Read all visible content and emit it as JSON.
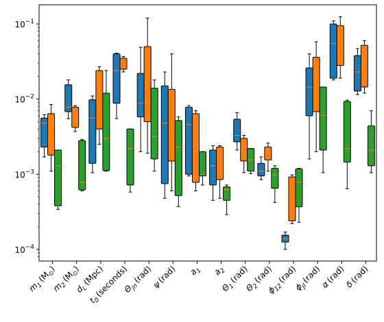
{
  "chart_data": {
    "type": "box",
    "y_scale": "log",
    "ylim": [
      7e-05,
      0.18
    ],
    "y_ticks": [
      {
        "value": 0.1,
        "label": "10",
        "exp": "−1"
      },
      {
        "value": 0.01,
        "label": "10",
        "exp": "−2"
      },
      {
        "value": 0.001,
        "label": "10",
        "exp": "−3"
      },
      {
        "value": 0.0001,
        "label": "10",
        "exp": "−4"
      }
    ],
    "categories": [
      {
        "sym": "m",
        "sub": "1",
        "unit": "(M",
        "unitsub": "⊙",
        "close": ")"
      },
      {
        "sym": "m",
        "sub": "2",
        "unit": "(M",
        "unitsub": "⊙",
        "close": ")"
      },
      {
        "sym": "d",
        "sub": "L",
        "unit": "(Mpc)",
        "unitsub": "",
        "close": ""
      },
      {
        "sym": "t",
        "sub": "0",
        "unit": "(seconds)",
        "unitsub": "",
        "close": ""
      },
      {
        "sym": "Θ",
        "sub": "jn",
        "unit": "(rad)",
        "unitsub": "",
        "close": ""
      },
      {
        "sym": "ψ",
        "sub": "",
        "unit": "(rad)",
        "unitsub": "",
        "close": ""
      },
      {
        "sym": "a",
        "sub": "1",
        "unit": "",
        "unitsub": "",
        "close": ""
      },
      {
        "sym": "a",
        "sub": "2",
        "unit": "",
        "unitsub": "",
        "close": ""
      },
      {
        "sym": "Θ",
        "sub": "1",
        "unit": "(rad)",
        "unitsub": "",
        "close": ""
      },
      {
        "sym": "Θ",
        "sub": "2",
        "unit": "(rad)",
        "unitsub": "",
        "close": ""
      },
      {
        "sym": "ϕ",
        "sub": "12",
        "unit": "(rad)",
        "unitsub": "",
        "close": ""
      },
      {
        "sym": "ϕ",
        "sub": "jl",
        "unit": "(rad)",
        "unitsub": "",
        "close": ""
      },
      {
        "sym": "α",
        "sub": "",
        "unit": "(rad)",
        "unitsub": "",
        "close": ""
      },
      {
        "sym": "δ",
        "sub": "",
        "unit": "(rad)",
        "unitsub": "",
        "close": ""
      }
    ],
    "series": [
      {
        "color": "#1f77b4",
        "boxes": [
          {
            "wl": 0.0017,
            "q1": 0.0023,
            "med": 0.0048,
            "q3": 0.0056,
            "wh": 0.0062
          },
          {
            "wl": 0.0055,
            "q1": 0.0068,
            "med": 0.0078,
            "q3": 0.0155,
            "wh": 0.018
          },
          {
            "wl": 0.00105,
            "q1": 0.0014,
            "med": 0.0056,
            "q3": 0.0098,
            "wh": 0.011
          },
          {
            "wl": 0.0055,
            "q1": 0.0088,
            "med": 0.024,
            "q3": 0.04,
            "wh": 0.041
          },
          {
            "wl": 0.002,
            "q1": 0.0058,
            "med": 0.0088,
            "q3": 0.022,
            "wh": 0.049
          },
          {
            "wl": 0.00048,
            "q1": 0.00075,
            "med": 0.0048,
            "q3": 0.015,
            "wh": 0.023
          },
          {
            "wl": 0.00095,
            "q1": 0.001,
            "med": 0.0046,
            "q3": 0.0078,
            "wh": 0.0082
          },
          {
            "wl": 0.00045,
            "q1": 0.00072,
            "med": 0.0013,
            "q3": 0.0021,
            "wh": 0.0024
          },
          {
            "wl": 0.0021,
            "q1": 0.0027,
            "med": 0.0033,
            "q3": 0.0054,
            "wh": 0.0066
          },
          {
            "wl": 0.00085,
            "q1": 0.00095,
            "med": 0.0011,
            "q3": 0.0014,
            "wh": 0.0017
          },
          {
            "wl": 0.0001,
            "q1": 0.000125,
            "med": 0.000138,
            "q3": 0.000155,
            "wh": 0.00017
          },
          {
            "wl": 0.0016,
            "q1": 0.006,
            "med": 0.0145,
            "q3": 0.026,
            "wh": 0.04
          },
          {
            "wl": 0.018,
            "q1": 0.019,
            "med": 0.055,
            "q3": 0.1,
            "wh": 0.11
          },
          {
            "wl": 0.0115,
            "q1": 0.0128,
            "med": 0.023,
            "q3": 0.038,
            "wh": 0.047
          }
        ]
      },
      {
        "color": "#ff7f0e",
        "boxes": [
          {
            "wl": 0.0011,
            "q1": 0.0018,
            "med": 0.0034,
            "q3": 0.0064,
            "wh": 0.0085
          },
          {
            "wl": 0.0037,
            "q1": 0.0042,
            "med": 0.0054,
            "q3": 0.0078,
            "wh": 0.0082
          },
          {
            "wl": 0.0025,
            "q1": 0.004,
            "med": 0.0135,
            "q3": 0.024,
            "wh": 0.027
          },
          {
            "wl": 0.023,
            "q1": 0.025,
            "med": 0.031,
            "q3": 0.035,
            "wh": 0.037
          },
          {
            "wl": 0.0019,
            "q1": 0.005,
            "med": 0.024,
            "q3": 0.05,
            "wh": 0.12
          },
          {
            "wl": 0.0006,
            "q1": 0.0015,
            "med": 0.0048,
            "q3": 0.0135,
            "wh": 0.04
          },
          {
            "wl": 0.0006,
            "q1": 0.00078,
            "med": 0.0031,
            "q3": 0.0064,
            "wh": 0.007
          },
          {
            "wl": 0.00048,
            "q1": 0.00085,
            "med": 0.0013,
            "q3": 0.0023,
            "wh": 0.0024
          },
          {
            "wl": 0.00105,
            "q1": 0.0015,
            "med": 0.0022,
            "q3": 0.003,
            "wh": 0.0033
          },
          {
            "wl": 0.0011,
            "q1": 0.00155,
            "med": 0.002,
            "q3": 0.0023,
            "wh": 0.0026
          },
          {
            "wl": 0.00022,
            "q1": 0.00024,
            "med": 0.00042,
            "q3": 0.00092,
            "wh": 0.00098
          },
          {
            "wl": 0.002,
            "q1": 0.0068,
            "med": 0.0135,
            "q3": 0.036,
            "wh": 0.058
          },
          {
            "wl": 0.019,
            "q1": 0.028,
            "med": 0.046,
            "q3": 0.095,
            "wh": 0.125
          },
          {
            "wl": 0.012,
            "q1": 0.0145,
            "med": 0.027,
            "q3": 0.052,
            "wh": 0.06
          }
        ]
      },
      {
        "color": "#2ca02c",
        "boxes": [
          {
            "wl": 0.00034,
            "q1": 0.00038,
            "med": 0.0013,
            "q3": 0.0021,
            "wh": 0.0021
          },
          {
            "wl": 0.0006,
            "q1": 0.00062,
            "med": 0.00078,
            "q3": 0.0028,
            "wh": 0.0029
          },
          {
            "wl": 0.0011,
            "q1": 0.00112,
            "med": 0.003,
            "q3": 0.012,
            "wh": 0.024
          },
          {
            "wl": 0.00058,
            "q1": 0.00072,
            "med": 0.0022,
            "q3": 0.004,
            "wh": 0.004
          },
          {
            "wl": 0.0011,
            "q1": 0.0016,
            "med": 0.0032,
            "q3": 0.014,
            "wh": 0.018
          },
          {
            "wl": 0.00037,
            "q1": 0.00052,
            "med": 0.0023,
            "q3": 0.0052,
            "wh": 0.0058
          },
          {
            "wl": 0.00072,
            "q1": 0.00095,
            "med": 0.00098,
            "q3": 0.002,
            "wh": 0.002
          },
          {
            "wl": 0.00029,
            "q1": 0.00045,
            "med": 0.00062,
            "q3": 0.00068,
            "wh": 0.00072
          },
          {
            "wl": 0.00102,
            "q1": 0.0011,
            "med": 0.00155,
            "q3": 0.0022,
            "wh": 0.0022
          },
          {
            "wl": 0.00042,
            "q1": 0.00065,
            "med": 0.00098,
            "q3": 0.0012,
            "wh": 0.0013
          },
          {
            "wl": 0.00023,
            "q1": 0.00037,
            "med": 0.00078,
            "q3": 0.00118,
            "wh": 0.0012
          },
          {
            "wl": 0.00105,
            "q1": 0.0021,
            "med": 0.0061,
            "q3": 0.0145,
            "wh": 0.0145
          },
          {
            "wl": 0.00064,
            "q1": 0.00145,
            "med": 0.0022,
            "q3": 0.0093,
            "wh": 0.0097
          },
          {
            "wl": 0.00105,
            "q1": 0.0013,
            "med": 0.0021,
            "q3": 0.0044,
            "wh": 0.007
          }
        ]
      }
    ]
  }
}
